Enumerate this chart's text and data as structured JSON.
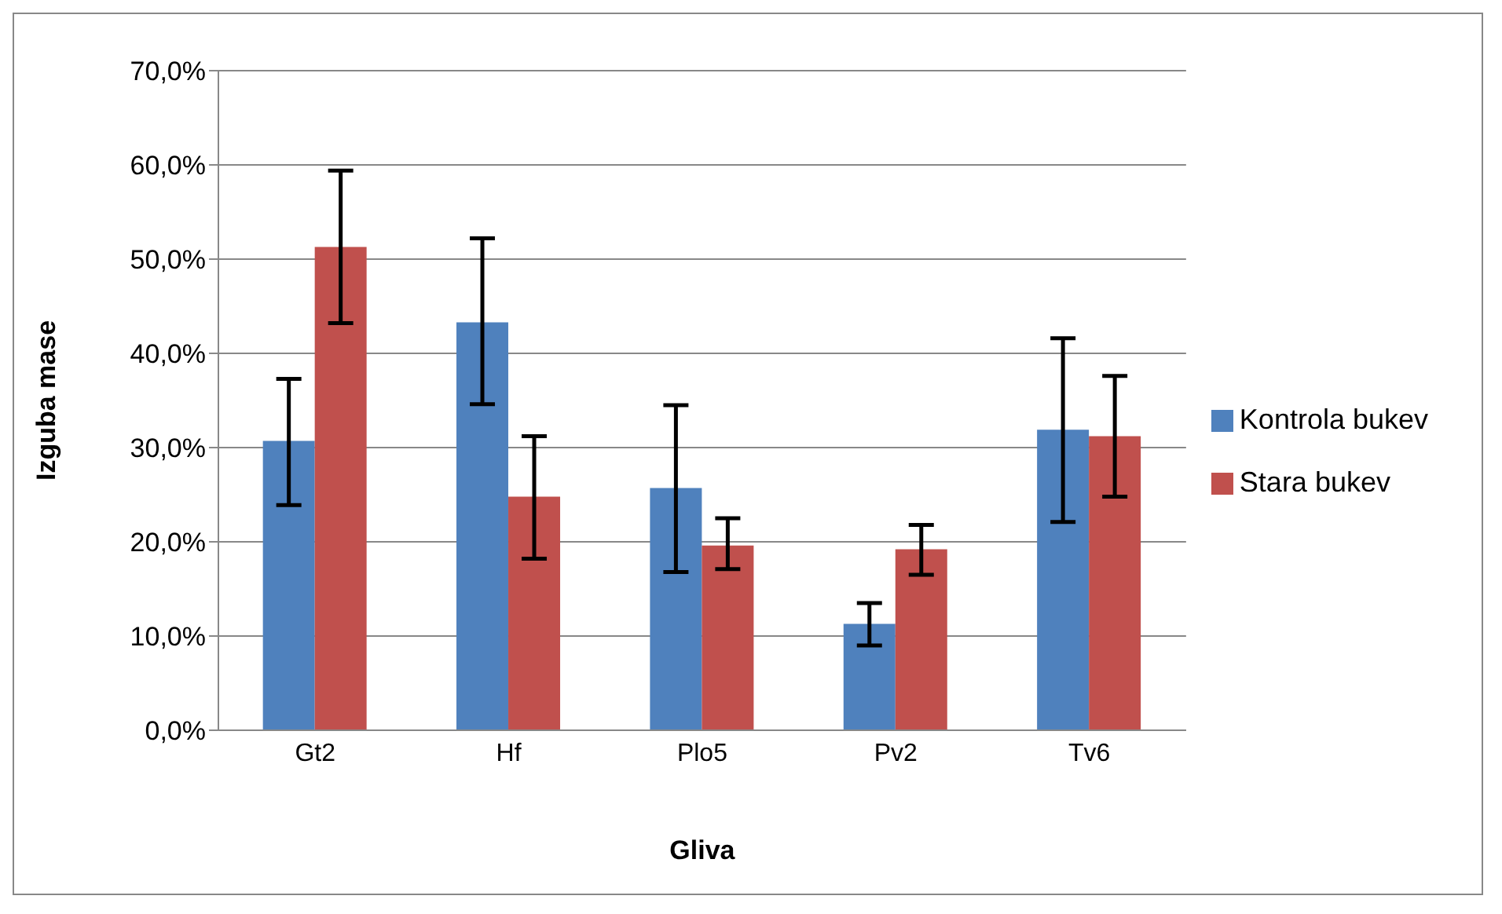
{
  "chart_data": {
    "type": "bar",
    "xlabel": "Gliva",
    "ylabel": "Izguba mase",
    "categories": [
      "Gt2",
      "Hf",
      "Plo5",
      "Pv2",
      "Tv6"
    ],
    "series": [
      {
        "name": "Kontrola bukev",
        "color": "#4f81bd",
        "values": [
          30.7,
          43.3,
          25.7,
          11.3,
          31.9
        ],
        "errors": [
          [
            23.9,
            37.3
          ],
          [
            34.6,
            52.2
          ],
          [
            16.8,
            34.5
          ],
          [
            9.0,
            13.5
          ],
          [
            22.1,
            41.6
          ]
        ]
      },
      {
        "name": "Stara bukev",
        "color": "#c0504d",
        "values": [
          51.3,
          24.8,
          19.6,
          19.2,
          31.2
        ],
        "errors": [
          [
            43.2,
            59.4
          ],
          [
            18.2,
            31.2
          ],
          [
            17.1,
            22.5
          ],
          [
            16.5,
            21.8
          ],
          [
            24.8,
            37.6
          ]
        ]
      }
    ],
    "ylim": [
      0,
      70
    ],
    "yticks": [
      {
        "value": 0,
        "label": "0,0%"
      },
      {
        "value": 10,
        "label": "10,0%"
      },
      {
        "value": 20,
        "label": "20,0%"
      },
      {
        "value": 30,
        "label": "30,0%"
      },
      {
        "value": 40,
        "label": "40,0%"
      },
      {
        "value": 50,
        "label": "50,0%"
      },
      {
        "value": 60,
        "label": "60,0%"
      },
      {
        "value": 70,
        "label": "70,0%"
      }
    ],
    "grid": "y",
    "legend": "right"
  }
}
